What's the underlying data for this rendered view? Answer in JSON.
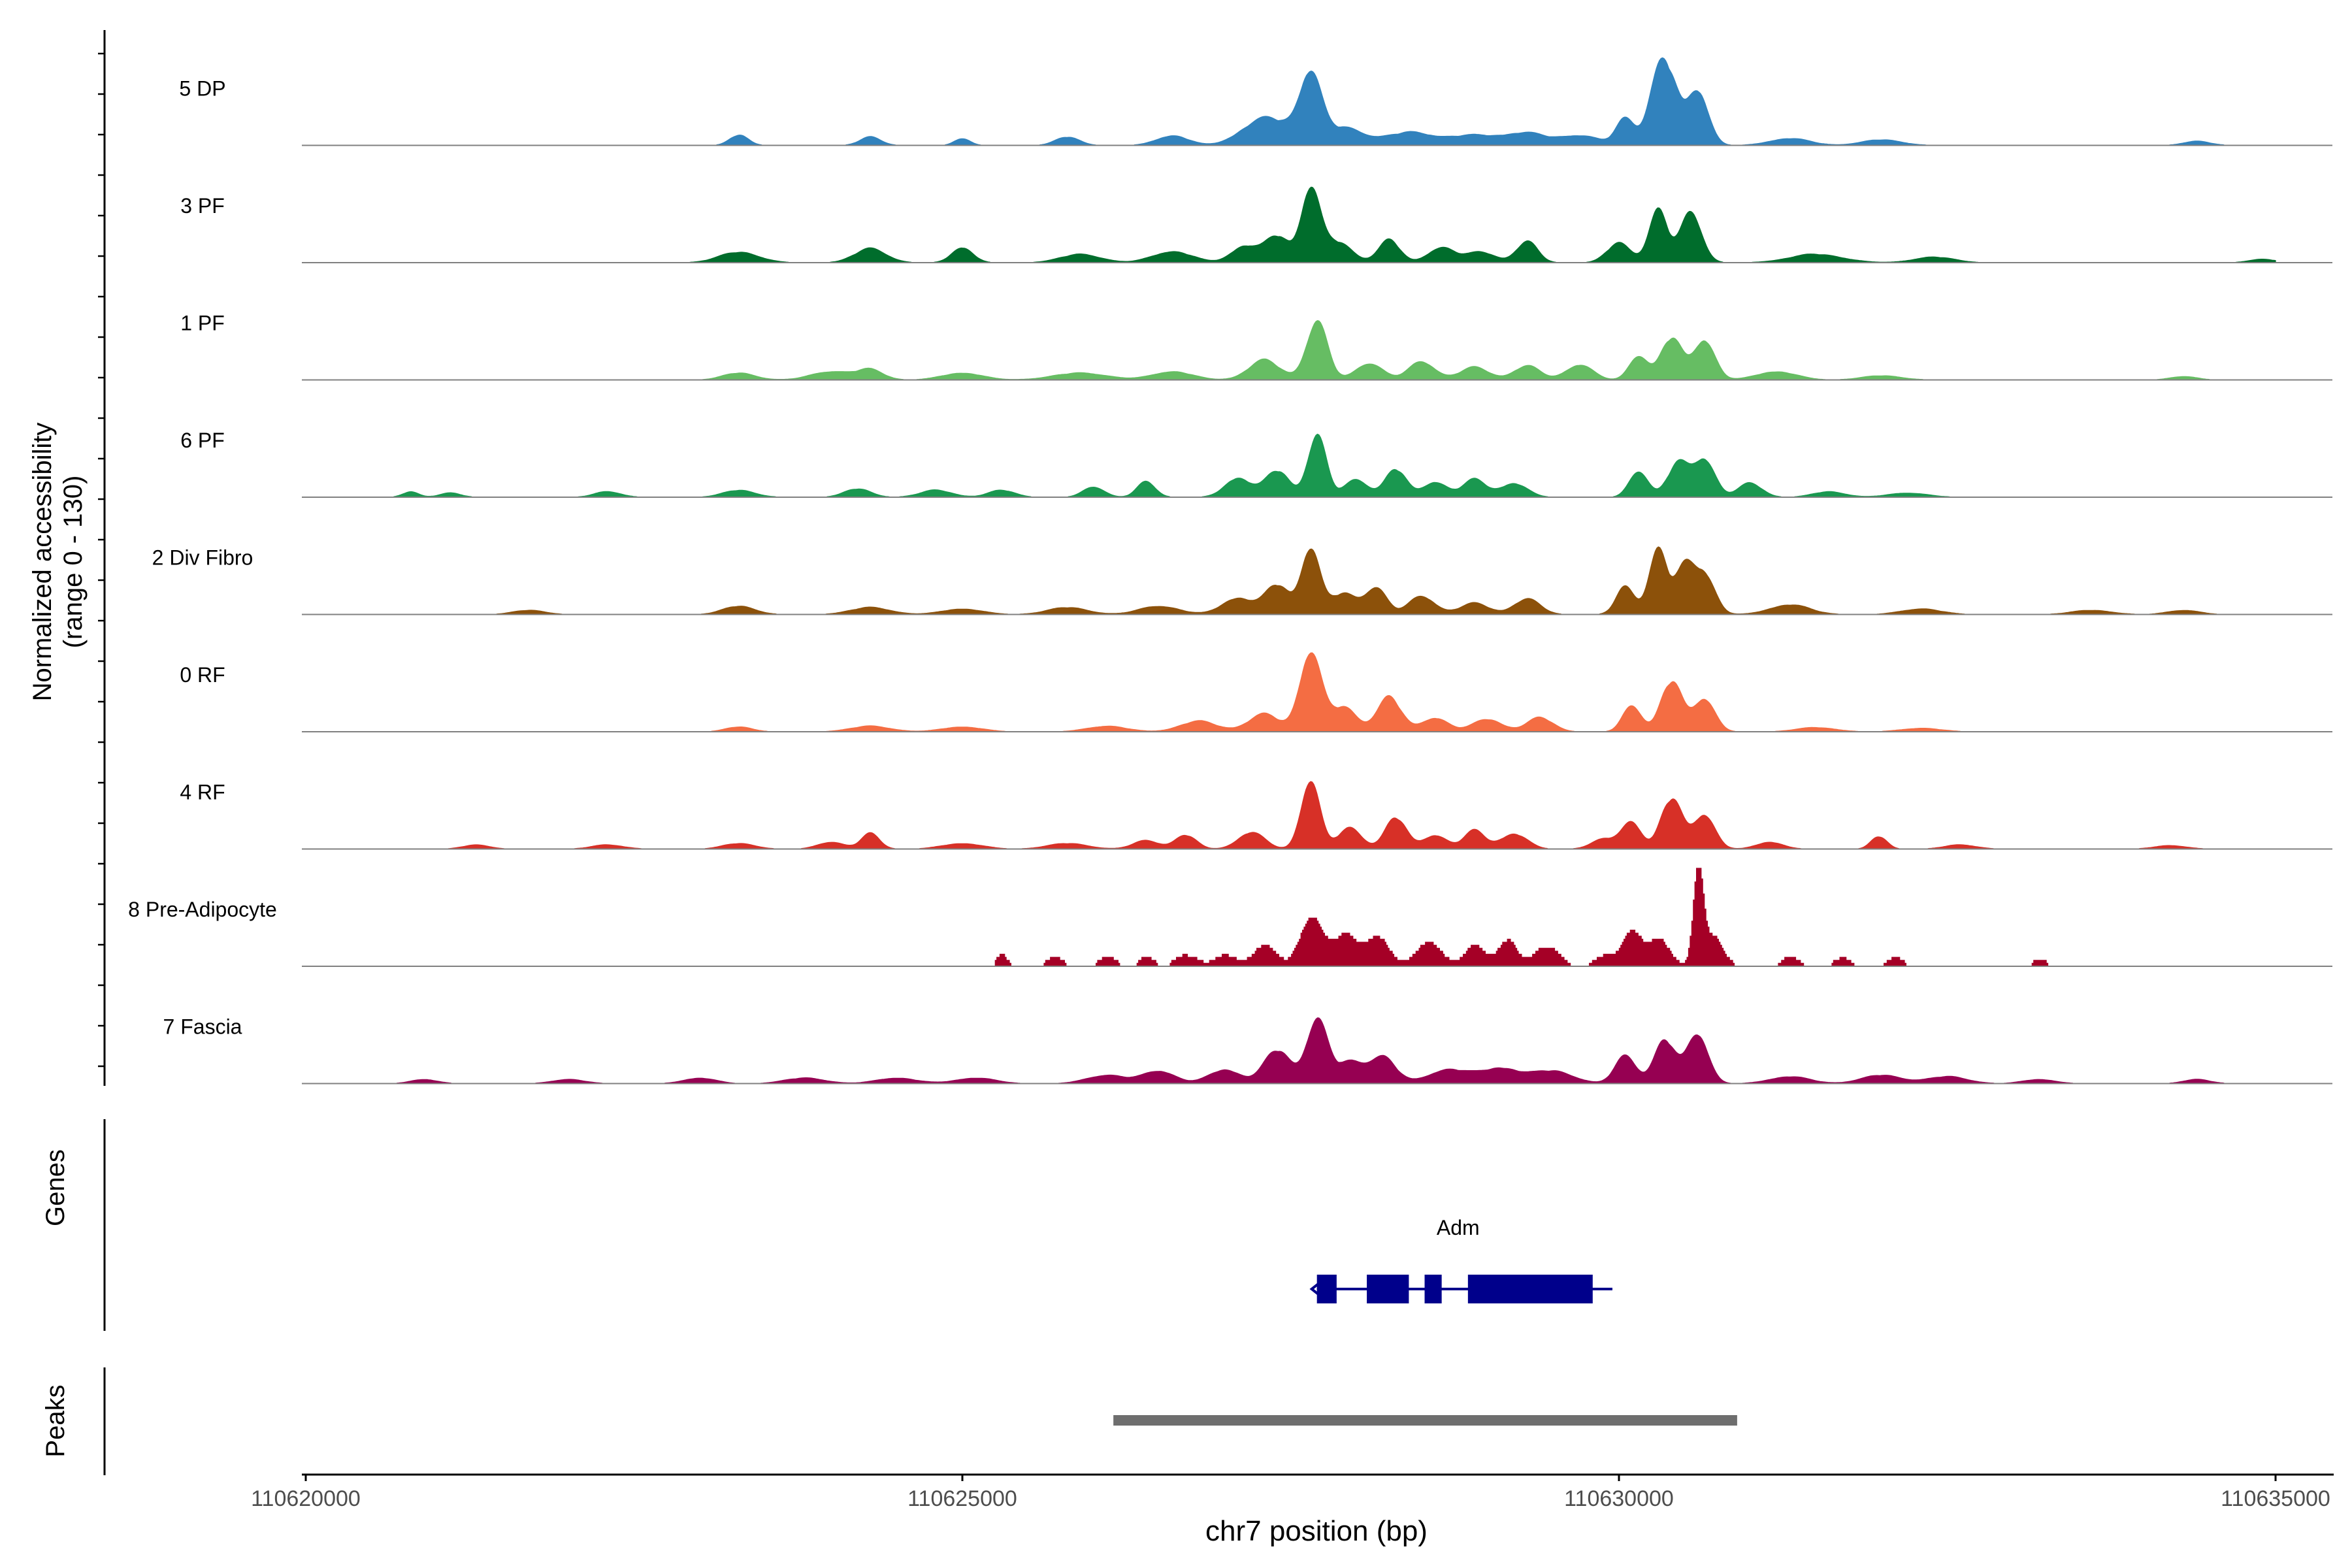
{
  "chart_data": {
    "type": "coverage",
    "ylabel_line1": "Normalized accessibility",
    "ylabel_line2": "(range 0 - 130)",
    "xlabel": "chr7 position (bp)",
    "x_range": [
      110620000,
      110635500
    ],
    "y_range": [
      0,
      130
    ],
    "x_ticks": [
      {
        "value": 110620000,
        "label": "110620000"
      },
      {
        "value": 110625000,
        "label": "110625000"
      },
      {
        "value": 110630000,
        "label": "110630000"
      },
      {
        "value": 110635000,
        "label": "110635000"
      }
    ],
    "tracks": [
      {
        "name": "5 DP",
        "color": "#3182BD",
        "x_start": 110620000,
        "x_end": 110634800,
        "blocky": false,
        "peaks": [
          [
            110623300,
            15,
            70
          ],
          [
            110624300,
            12,
            80
          ],
          [
            110625000,
            10,
            60
          ],
          [
            110625800,
            12,
            90
          ],
          [
            110626600,
            14,
            120
          ],
          [
            110627200,
            18,
            140
          ],
          [
            110627400,
            30,
            160
          ],
          [
            110627650,
            95,
            80
          ],
          [
            110627900,
            25,
            150
          ],
          [
            110628400,
            18,
            180
          ],
          [
            110628900,
            14,
            200
          ],
          [
            110629300,
            16,
            150
          ],
          [
            110629700,
            14,
            150
          ],
          [
            110630050,
            38,
            70
          ],
          [
            110630300,
            92,
            80
          ],
          [
            110630400,
            60,
            70
          ],
          [
            110630600,
            80,
            80
          ],
          [
            110631300,
            10,
            150
          ],
          [
            110632000,
            8,
            150
          ],
          [
            110634400,
            6,
            100
          ]
        ]
      },
      {
        "name": "3 PF",
        "color": "#006D2C",
        "x_start": 110620000,
        "x_end": 110635000,
        "blocky": false,
        "peaks": [
          [
            110623300,
            15,
            150
          ],
          [
            110624300,
            20,
            120
          ],
          [
            110625000,
            22,
            80
          ],
          [
            110625900,
            12,
            150
          ],
          [
            110626600,
            16,
            150
          ],
          [
            110627150,
            24,
            100
          ],
          [
            110627400,
            38,
            90
          ],
          [
            110627650,
            105,
            70
          ],
          [
            110627850,
            30,
            110
          ],
          [
            110628250,
            33,
            80
          ],
          [
            110628650,
            22,
            100
          ],
          [
            110628950,
            15,
            110
          ],
          [
            110629300,
            30,
            80
          ],
          [
            110630000,
            28,
            90
          ],
          [
            110630300,
            75,
            70
          ],
          [
            110630550,
            72,
            80
          ],
          [
            110631500,
            12,
            200
          ],
          [
            110632400,
            8,
            150
          ],
          [
            110634900,
            5,
            100
          ]
        ]
      },
      {
        "name": "1 PF",
        "color": "#66BD63",
        "x_start": 110620300,
        "x_end": 110634500,
        "blocky": false,
        "peaks": [
          [
            110623300,
            10,
            120
          ],
          [
            110624000,
            12,
            150
          ],
          [
            110624300,
            14,
            100
          ],
          [
            110625000,
            10,
            150
          ],
          [
            110625900,
            10,
            200
          ],
          [
            110626600,
            12,
            150
          ],
          [
            110627300,
            28,
            120
          ],
          [
            110627700,
            83,
            80
          ],
          [
            110628100,
            24,
            100
          ],
          [
            110628500,
            26,
            100
          ],
          [
            110628900,
            18,
            110
          ],
          [
            110629300,
            20,
            100
          ],
          [
            110629700,
            22,
            100
          ],
          [
            110630150,
            35,
            70
          ],
          [
            110630400,
            60,
            80
          ],
          [
            110630650,
            58,
            80
          ],
          [
            110631200,
            12,
            150
          ],
          [
            110632000,
            6,
            150
          ],
          [
            110634300,
            5,
            100
          ]
        ]
      },
      {
        "name": "6 PF",
        "color": "#1A9850",
        "x_start": 110620600,
        "x_end": 110634800,
        "blocky": false,
        "peaks": [
          [
            110620800,
            8,
            60
          ],
          [
            110621100,
            6,
            80
          ],
          [
            110622300,
            8,
            100
          ],
          [
            110623300,
            10,
            120
          ],
          [
            110624200,
            12,
            100
          ],
          [
            110624800,
            10,
            120
          ],
          [
            110625300,
            10,
            100
          ],
          [
            110626000,
            15,
            80
          ],
          [
            110626400,
            22,
            70
          ],
          [
            110627100,
            28,
            100
          ],
          [
            110627400,
            38,
            90
          ],
          [
            110627700,
            88,
            70
          ],
          [
            110628000,
            25,
            90
          ],
          [
            110628300,
            40,
            80
          ],
          [
            110628600,
            22,
            90
          ],
          [
            110628900,
            25,
            90
          ],
          [
            110629200,
            20,
            100
          ],
          [
            110630150,
            38,
            70
          ],
          [
            110630450,
            48,
            80
          ],
          [
            110630650,
            55,
            80
          ],
          [
            110631000,
            20,
            90
          ],
          [
            110631600,
            8,
            120
          ],
          [
            110632200,
            6,
            150
          ]
        ]
      },
      {
        "name": "2 Div Fibro",
        "color": "#8C510A",
        "x_start": 110621000,
        "x_end": 110634800,
        "blocky": false,
        "peaks": [
          [
            110621700,
            6,
            120
          ],
          [
            110623300,
            12,
            120
          ],
          [
            110624300,
            10,
            150
          ],
          [
            110625000,
            8,
            150
          ],
          [
            110625800,
            10,
            150
          ],
          [
            110626500,
            12,
            150
          ],
          [
            110627100,
            24,
            120
          ],
          [
            110627400,
            42,
            90
          ],
          [
            110627650,
            95,
            70
          ],
          [
            110627900,
            30,
            100
          ],
          [
            110628150,
            38,
            80
          ],
          [
            110628500,
            26,
            100
          ],
          [
            110628900,
            16,
            110
          ],
          [
            110629300,
            22,
            100
          ],
          [
            110630050,
            40,
            70
          ],
          [
            110630300,
            92,
            70
          ],
          [
            110630500,
            62,
            70
          ],
          [
            110630650,
            58,
            80
          ],
          [
            110631300,
            14,
            150
          ],
          [
            110632300,
            8,
            150
          ],
          [
            110633600,
            6,
            150
          ],
          [
            110634300,
            6,
            120
          ]
        ]
      },
      {
        "name": "0 RF",
        "color": "#F46D43",
        "x_start": 110620500,
        "x_end": 110634800,
        "blocky": false,
        "peaks": [
          [
            110623300,
            7,
            100
          ],
          [
            110624300,
            8,
            150
          ],
          [
            110625000,
            7,
            150
          ],
          [
            110626100,
            8,
            150
          ],
          [
            110626800,
            15,
            140
          ],
          [
            110627300,
            25,
            120
          ],
          [
            110627650,
            115,
            80
          ],
          [
            110627900,
            35,
            100
          ],
          [
            110628250,
            50,
            90
          ],
          [
            110628600,
            20,
            100
          ],
          [
            110629000,
            18,
            110
          ],
          [
            110629400,
            20,
            100
          ],
          [
            110630100,
            38,
            70
          ],
          [
            110630400,
            72,
            80
          ],
          [
            110630650,
            48,
            80
          ],
          [
            110631500,
            6,
            150
          ],
          [
            110632300,
            5,
            150
          ]
        ]
      },
      {
        "name": "4 RF",
        "color": "#D73027",
        "x_start": 110620500,
        "x_end": 110634800,
        "blocky": false,
        "peaks": [
          [
            110621300,
            6,
            100
          ],
          [
            110622300,
            6,
            120
          ],
          [
            110623300,
            8,
            120
          ],
          [
            110624000,
            10,
            100
          ],
          [
            110624300,
            22,
            70
          ],
          [
            110625000,
            8,
            150
          ],
          [
            110625800,
            8,
            150
          ],
          [
            110626400,
            12,
            100
          ],
          [
            110626700,
            20,
            80
          ],
          [
            110627200,
            24,
            100
          ],
          [
            110627650,
            100,
            70
          ],
          [
            110627950,
            30,
            90
          ],
          [
            110628300,
            45,
            80
          ],
          [
            110628600,
            20,
            90
          ],
          [
            110628900,
            26,
            80
          ],
          [
            110629200,
            22,
            100
          ],
          [
            110629900,
            15,
            100
          ],
          [
            110630100,
            38,
            70
          ],
          [
            110630400,
            72,
            80
          ],
          [
            110630650,
            50,
            80
          ],
          [
            110631150,
            10,
            100
          ],
          [
            110631980,
            18,
            60
          ],
          [
            110632600,
            6,
            120
          ],
          [
            110634200,
            5,
            120
          ]
        ]
      },
      {
        "name": "8 Pre-Adipocyte",
        "color": "#A50026",
        "x_start": 110625250,
        "x_end": 110633300,
        "blocky": true,
        "peaks": [
          [
            110625300,
            16,
            40
          ],
          [
            110625700,
            12,
            60
          ],
          [
            110626100,
            14,
            60
          ],
          [
            110626400,
            14,
            50
          ],
          [
            110626700,
            16,
            80
          ],
          [
            110627000,
            16,
            80
          ],
          [
            110627300,
            28,
            90
          ],
          [
            110627650,
            72,
            80
          ],
          [
            110627900,
            45,
            90
          ],
          [
            110628150,
            42,
            90
          ],
          [
            110628550,
            35,
            90
          ],
          [
            110628900,
            28,
            80
          ],
          [
            110629150,
            38,
            70
          ],
          [
            110629450,
            28,
            90
          ],
          [
            110629900,
            15,
            80
          ],
          [
            110630100,
            50,
            70
          ],
          [
            110630300,
            38,
            80
          ],
          [
            110630600,
            135,
            35
          ],
          [
            110630700,
            45,
            80
          ],
          [
            110631300,
            14,
            60
          ],
          [
            110631700,
            12,
            60
          ],
          [
            110632100,
            12,
            60
          ],
          [
            110633200,
            10,
            50
          ]
        ]
      },
      {
        "name": "7 Fascia",
        "color": "#960052",
        "x_start": 110620600,
        "x_end": 110634900,
        "blocky": false,
        "peaks": [
          [
            110620900,
            6,
            100
          ],
          [
            110622000,
            6,
            120
          ],
          [
            110623000,
            8,
            120
          ],
          [
            110623800,
            8,
            150
          ],
          [
            110624500,
            8,
            150
          ],
          [
            110625100,
            8,
            150
          ],
          [
            110626100,
            12,
            150
          ],
          [
            110626500,
            18,
            120
          ],
          [
            110627000,
            20,
            120
          ],
          [
            110627400,
            48,
            100
          ],
          [
            110627700,
            90,
            80
          ],
          [
            110627950,
            30,
            100
          ],
          [
            110628200,
            38,
            100
          ],
          [
            110628700,
            20,
            150
          ],
          [
            110629100,
            22,
            150
          ],
          [
            110629500,
            18,
            150
          ],
          [
            110630050,
            40,
            80
          ],
          [
            110630350,
            62,
            80
          ],
          [
            110630600,
            72,
            80
          ],
          [
            110631300,
            10,
            150
          ],
          [
            110632000,
            12,
            150
          ],
          [
            110632500,
            10,
            150
          ],
          [
            110633200,
            6,
            120
          ],
          [
            110634400,
            6,
            100
          ]
        ]
      }
    ],
    "genes_label": "Genes",
    "gene": {
      "name": "Adm",
      "color": "#00008B",
      "strand": "-",
      "start": 110627700,
      "end": 110629950,
      "exons": [
        [
          110627700,
          110627850
        ],
        [
          110628080,
          110628400
        ],
        [
          110628520,
          110628650
        ],
        [
          110628850,
          110629800
        ]
      ]
    },
    "peaks_label": "Peaks",
    "peak_regions": [
      {
        "start": 110626150,
        "end": 110630900,
        "color": "#6E6E6E"
      }
    ]
  }
}
